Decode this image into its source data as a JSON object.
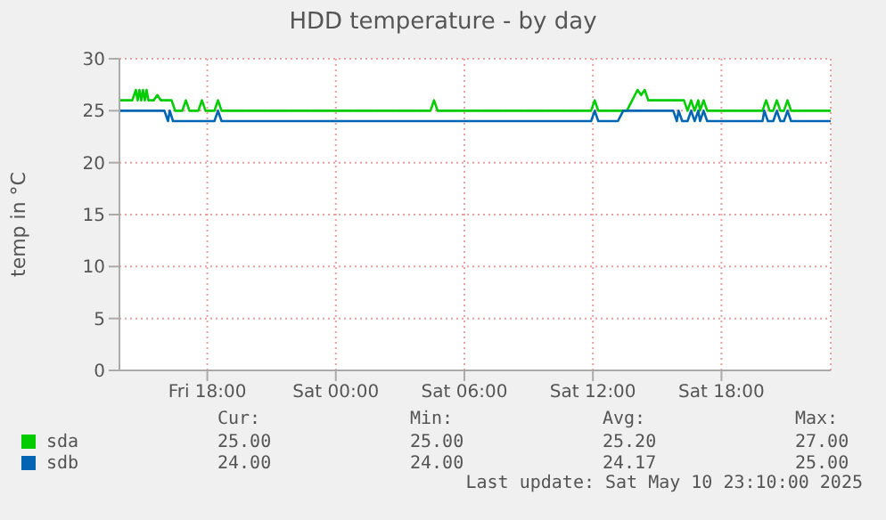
{
  "chart_data": {
    "type": "line",
    "title": "HDD temperature - by day",
    "ylabel": "temp in °C",
    "xlim": [
      "2025-05-09T13:54",
      "2025-05-10T23:06"
    ],
    "xticks": [
      {
        "value": "2025-05-09T18:00",
        "label": "Fri 18:00"
      },
      {
        "value": "2025-05-10T00:00",
        "label": "Sat 00:00"
      },
      {
        "value": "2025-05-10T06:00",
        "label": "Sat 06:00"
      },
      {
        "value": "2025-05-10T12:00",
        "label": "Sat 12:00"
      },
      {
        "value": "2025-05-10T18:00",
        "label": "Sat 18:00"
      }
    ],
    "ylim": [
      0,
      30
    ],
    "yticks": [
      0,
      5,
      10,
      15,
      20,
      25,
      30
    ],
    "grid": true,
    "legend": "bottom",
    "marker": "none",
    "series": [
      {
        "name": "sda",
        "color": "#00cc00",
        "x": [
          "2025-05-09T13:54",
          "2025-05-09T14:30",
          "2025-05-09T14:40",
          "2025-05-09T14:45",
          "2025-05-09T14:50",
          "2025-05-09T14:55",
          "2025-05-09T15:00",
          "2025-05-09T15:05",
          "2025-05-09T15:10",
          "2025-05-09T15:15",
          "2025-05-09T15:30",
          "2025-05-09T15:40",
          "2025-05-09T15:50",
          "2025-05-09T16:20",
          "2025-05-09T16:30",
          "2025-05-09T16:50",
          "2025-05-09T17:00",
          "2025-05-09T17:10",
          "2025-05-09T17:35",
          "2025-05-09T17:45",
          "2025-05-09T17:55",
          "2025-05-09T18:20",
          "2025-05-09T18:30",
          "2025-05-09T18:40",
          "2025-05-10T04:25",
          "2025-05-10T04:35",
          "2025-05-10T04:45",
          "2025-05-10T11:55",
          "2025-05-10T12:05",
          "2025-05-10T12:15",
          "2025-05-10T13:35",
          "2025-05-10T14:05",
          "2025-05-10T14:15",
          "2025-05-10T14:25",
          "2025-05-10T14:35",
          "2025-05-10T16:15",
          "2025-05-10T16:25",
          "2025-05-10T16:35",
          "2025-05-10T16:45",
          "2025-05-10T16:55",
          "2025-05-10T17:00",
          "2025-05-10T17:10",
          "2025-05-10T17:20",
          "2025-05-10T19:55",
          "2025-05-10T20:05",
          "2025-05-10T20:15",
          "2025-05-10T20:25",
          "2025-05-10T20:35",
          "2025-05-10T20:45",
          "2025-05-10T20:55",
          "2025-05-10T21:05",
          "2025-05-10T21:15",
          "2025-05-10T23:06"
        ],
        "values": [
          26,
          26,
          27,
          26,
          27,
          26,
          27,
          26,
          27,
          26,
          26,
          26.5,
          26,
          26,
          25,
          25,
          26,
          25,
          25,
          26,
          25,
          25,
          26,
          25,
          25,
          26,
          25,
          25,
          26,
          25,
          25,
          27,
          26.5,
          27,
          26,
          26,
          25,
          26,
          25,
          26,
          25,
          26,
          25,
          25,
          26,
          25,
          25,
          26,
          25,
          25,
          26,
          25,
          25
        ]
      },
      {
        "name": "sdb",
        "color": "#0066b3",
        "x": [
          "2025-05-09T13:54",
          "2025-05-09T16:00",
          "2025-05-09T16:10",
          "2025-05-09T16:15",
          "2025-05-09T16:24",
          "2025-05-09T18:20",
          "2025-05-09T18:30",
          "2025-05-09T18:40",
          "2025-05-10T11:55",
          "2025-05-10T12:05",
          "2025-05-10T12:15",
          "2025-05-10T13:10",
          "2025-05-10T13:25",
          "2025-05-10T15:45",
          "2025-05-10T15:55",
          "2025-05-10T16:00",
          "2025-05-10T16:10",
          "2025-05-10T16:25",
          "2025-05-10T16:35",
          "2025-05-10T16:45",
          "2025-05-10T16:55",
          "2025-05-10T17:00",
          "2025-05-10T17:10",
          "2025-05-10T17:20",
          "2025-05-10T19:55",
          "2025-05-10T20:00",
          "2025-05-10T20:10",
          "2025-05-10T20:25",
          "2025-05-10T20:35",
          "2025-05-10T20:45",
          "2025-05-10T20:55",
          "2025-05-10T21:05",
          "2025-05-10T21:15",
          "2025-05-10T23:06"
        ],
        "values": [
          25,
          25,
          24,
          25,
          24,
          24,
          25,
          24,
          24,
          25,
          24,
          24,
          25,
          25,
          24,
          25,
          24,
          24,
          25,
          24,
          25,
          24,
          25,
          24,
          24,
          25,
          24,
          24,
          25,
          24,
          24,
          25,
          24,
          24
        ]
      }
    ],
    "annotations": [
      "Cur:",
      "Min:",
      "Avg:",
      "Max:",
      "25.00",
      "25.00",
      "25.20",
      "27.00",
      "24.00",
      "24.00",
      "24.17",
      "25.00",
      "Last update: Sat May 10 23:10:00 2025"
    ]
  }
}
